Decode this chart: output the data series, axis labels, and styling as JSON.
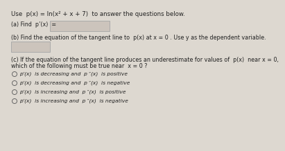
{
  "background_color": "#ddd8d0",
  "title_line": "Use  p(x) = ln(x² + x + 7)  to answer the questions below.",
  "part_a_label": "(a) Find  p’(x)  =",
  "part_b_label": "(b) Find the equation of the tangent line to  p(x) at x = 0 . Use y as the dependent variable.",
  "part_c_label_1": "(c) If the equation of the tangent line produces an underestimate for values of  p(x)  near x = 0,",
  "part_c_label_2": "which of the following must be true near  x = 0 ?",
  "options": [
    "p’(x)  is decreasing and  p ″(x)  is positive",
    "p’(x)  is decreasing and  p ″(x)  is negative",
    "p’(x)  is increasing and  p ″(x)  is positive",
    "p’(x)  is increasing and  p ″(x)  is negative"
  ],
  "box_color": "#ccc4bc",
  "box_edge_color": "#aaaaaa",
  "text_color": "#222222",
  "font_size_title": 6.2,
  "font_size_body": 5.8,
  "font_size_options": 5.4,
  "circle_color": "#666666"
}
